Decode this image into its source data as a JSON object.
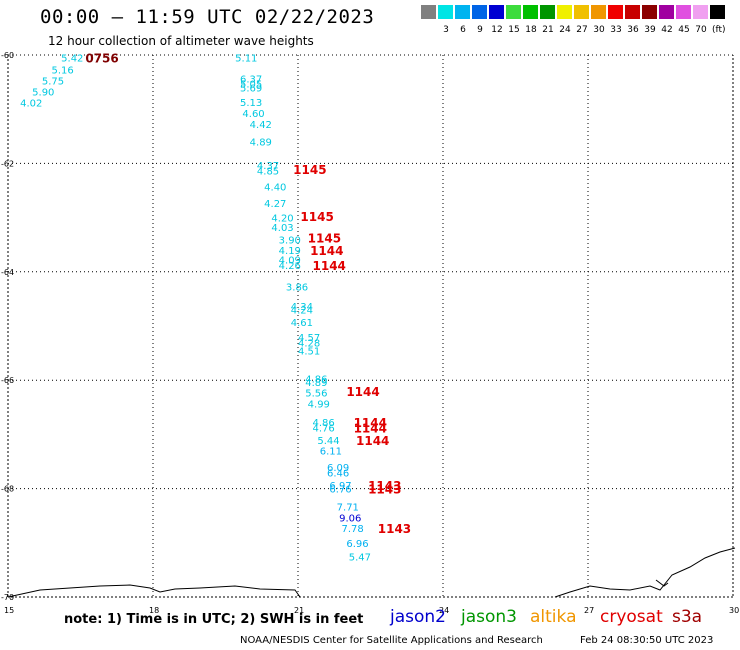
{
  "header": {
    "title": "00:00 – 11:59 UTC 02/22/2023",
    "subtitle": "12 hour collection of altimeter wave heights"
  },
  "legend": {
    "items": [
      {
        "label": "",
        "color": "#808080"
      },
      {
        "label": "3",
        "color": "#00e5e5"
      },
      {
        "label": "6",
        "color": "#00b4f0"
      },
      {
        "label": "9",
        "color": "#0064e6"
      },
      {
        "label": "12",
        "color": "#0000d2"
      },
      {
        "label": "15",
        "color": "#3cdc3c"
      },
      {
        "label": "18",
        "color": "#00c000"
      },
      {
        "label": "21",
        "color": "#009600"
      },
      {
        "label": "24",
        "color": "#f0f000"
      },
      {
        "label": "27",
        "color": "#f0c000"
      },
      {
        "label": "30",
        "color": "#f09600"
      },
      {
        "label": "33",
        "color": "#f00000"
      },
      {
        "label": "36",
        "color": "#c80000"
      },
      {
        "label": "39",
        "color": "#8c0000"
      },
      {
        "label": "42",
        "color": "#a000a0"
      },
      {
        "label": "45",
        "color": "#e050e0"
      },
      {
        "label": "70",
        "color": "#f0a0f0"
      },
      {
        "label": "",
        "color": "#000000"
      }
    ],
    "unit": "(ft)"
  },
  "map": {
    "lat_labels": [
      "-60",
      "-62",
      "-64",
      "-66",
      "-68",
      "-70"
    ],
    "lon_labels": [
      "15",
      "18",
      "21",
      "24",
      "27",
      "30"
    ],
    "grid": true
  },
  "observations": [
    {
      "text": "5.42",
      "lon": 16.1,
      "lat": -60.05,
      "color": "#00c8e0"
    },
    {
      "text": "5.16",
      "lon": 15.9,
      "lat": -60.27,
      "color": "#00c8e0"
    },
    {
      "text": "5.75",
      "lon": 15.7,
      "lat": -60.47,
      "color": "#00c8e0"
    },
    {
      "text": "5.90",
      "lon": 15.5,
      "lat": -60.67,
      "color": "#00c8e0"
    },
    {
      "text": "4.02",
      "lon": 15.25,
      "lat": -60.88,
      "color": "#00c8e0"
    },
    {
      "text": "5.11",
      "lon": 19.7,
      "lat": -60.05,
      "color": "#00c8e0"
    },
    {
      "text": "6.37",
      "lon": 19.8,
      "lat": -60.43,
      "color": "#00c8e0"
    },
    {
      "text": "5.05",
      "lon": 19.8,
      "lat": -60.53,
      "color": "#00c8e0"
    },
    {
      "text": "5.69",
      "lon": 19.8,
      "lat": -60.6,
      "color": "#00c8e0"
    },
    {
      "text": "5.13",
      "lon": 19.8,
      "lat": -60.87,
      "color": "#00c8e0"
    },
    {
      "text": "4.60",
      "lon": 19.85,
      "lat": -61.07,
      "color": "#00c8e0"
    },
    {
      "text": "4.42",
      "lon": 20.0,
      "lat": -61.27,
      "color": "#00c8e0"
    },
    {
      "text": "4.89",
      "lon": 20.0,
      "lat": -61.6,
      "color": "#00c8e0"
    },
    {
      "text": "4.37",
      "lon": 20.15,
      "lat": -62.03,
      "color": "#00c8e0"
    },
    {
      "text": "4.85",
      "lon": 20.15,
      "lat": -62.13,
      "color": "#00c8e0"
    },
    {
      "text": "4.40",
      "lon": 20.3,
      "lat": -62.43,
      "color": "#00c8e0"
    },
    {
      "text": "4.27",
      "lon": 20.3,
      "lat": -62.73,
      "color": "#00c8e0"
    },
    {
      "text": "4.20",
      "lon": 20.45,
      "lat": -63.0,
      "color": "#00c8e0"
    },
    {
      "text": "4.03",
      "lon": 20.45,
      "lat": -63.17,
      "color": "#00c8e0"
    },
    {
      "text": "3.90",
      "lon": 20.6,
      "lat": -63.4,
      "color": "#00c8e0"
    },
    {
      "text": "4.19",
      "lon": 20.6,
      "lat": -63.6,
      "color": "#00c8e0"
    },
    {
      "text": "4.09",
      "lon": 20.6,
      "lat": -63.77,
      "color": "#00c8e0"
    },
    {
      "text": "4.26",
      "lon": 20.6,
      "lat": -63.87,
      "color": "#00c8e0"
    },
    {
      "text": "3.86",
      "lon": 20.75,
      "lat": -64.27,
      "color": "#00c8e0"
    },
    {
      "text": "4.34",
      "lon": 20.85,
      "lat": -64.63,
      "color": "#00c8e0"
    },
    {
      "text": "4.24",
      "lon": 20.85,
      "lat": -64.7,
      "color": "#00c8e0"
    },
    {
      "text": "4.61",
      "lon": 20.85,
      "lat": -64.93,
      "color": "#00c8e0"
    },
    {
      "text": "4.57",
      "lon": 21.0,
      "lat": -65.2,
      "color": "#00c8e0"
    },
    {
      "text": "4.28",
      "lon": 21.0,
      "lat": -65.3,
      "color": "#00c8e0"
    },
    {
      "text": "4.51",
      "lon": 21.0,
      "lat": -65.45,
      "color": "#00c8e0"
    },
    {
      "text": "4.86",
      "lon": 21.15,
      "lat": -65.97,
      "color": "#00c8e0"
    },
    {
      "text": "4.89",
      "lon": 21.15,
      "lat": -66.03,
      "color": "#00c8e0"
    },
    {
      "text": "5.56",
      "lon": 21.15,
      "lat": -66.23,
      "color": "#00c8e0"
    },
    {
      "text": "4.99",
      "lon": 21.2,
      "lat": -66.43,
      "color": "#00c8e0"
    },
    {
      "text": "4.86",
      "lon": 21.3,
      "lat": -66.77,
      "color": "#00c8e0"
    },
    {
      "text": "4.76",
      "lon": 21.3,
      "lat": -66.87,
      "color": "#00c8e0"
    },
    {
      "text": "5.44",
      "lon": 21.4,
      "lat": -67.1,
      "color": "#00c8e0"
    },
    {
      "text": "6.11",
      "lon": 21.45,
      "lat": -67.3,
      "color": "#00b0f0"
    },
    {
      "text": "6.09",
      "lon": 21.6,
      "lat": -67.6,
      "color": "#00b0f0"
    },
    {
      "text": "6.46",
      "lon": 21.6,
      "lat": -67.7,
      "color": "#00b0f0"
    },
    {
      "text": "6.97",
      "lon": 21.65,
      "lat": -67.93,
      "color": "#00b0f0"
    },
    {
      "text": "6.76",
      "lon": 21.65,
      "lat": -68.0,
      "color": "#00b0f0"
    },
    {
      "text": "7.71",
      "lon": 21.8,
      "lat": -68.33,
      "color": "#00b0f0"
    },
    {
      "text": "9.06",
      "lon": 21.85,
      "lat": -68.53,
      "color": "#0000d2"
    },
    {
      "text": "7.78",
      "lon": 21.9,
      "lat": -68.73,
      "color": "#00b0f0"
    },
    {
      "text": "6.96",
      "lon": 22.0,
      "lat": -69.0,
      "color": "#00b0f0"
    },
    {
      "text": "5.47",
      "lon": 22.05,
      "lat": -69.25,
      "color": "#00c8e0"
    }
  ],
  "time_labels": [
    {
      "text": "0756",
      "lon": 16.6,
      "lat": -60.05,
      "color": "#800000"
    },
    {
      "text": "1145",
      "lon": 20.9,
      "lat": -62.1,
      "color": "#e00000"
    },
    {
      "text": "1145",
      "lon": 21.05,
      "lat": -62.97,
      "color": "#e00000"
    },
    {
      "text": "1145",
      "lon": 21.2,
      "lat": -63.37,
      "color": "#e00000"
    },
    {
      "text": "1144",
      "lon": 21.25,
      "lat": -63.6,
      "color": "#e00000"
    },
    {
      "text": "1144",
      "lon": 21.3,
      "lat": -63.87,
      "color": "#e00000"
    },
    {
      "text": "1144",
      "lon": 22.0,
      "lat": -66.2,
      "color": "#e00000"
    },
    {
      "text": "1144",
      "lon": 22.15,
      "lat": -66.77,
      "color": "#e00000"
    },
    {
      "text": "1144",
      "lon": 22.15,
      "lat": -66.87,
      "color": "#e00000"
    },
    {
      "text": "1144",
      "lon": 22.2,
      "lat": -67.1,
      "color": "#e00000"
    },
    {
      "text": "1143",
      "lon": 22.45,
      "lat": -67.93,
      "color": "#e00000"
    },
    {
      "text": "1143",
      "lon": 22.45,
      "lat": -68.0,
      "color": "#e00000"
    },
    {
      "text": "1143",
      "lon": 22.65,
      "lat": -68.73,
      "color": "#e00000"
    }
  ],
  "note": "note: 1) Time is in UTC; 2) SWH is in feet",
  "satellites": [
    {
      "name": "jason2",
      "color": "#0000cc"
    },
    {
      "name": "jason3",
      "color": "#009600"
    },
    {
      "name": "altika",
      "color": "#f09600"
    },
    {
      "name": "cryosat",
      "color": "#e00000"
    },
    {
      "name": "s3a",
      "color": "#a00000"
    }
  ],
  "footer": {
    "source": "NOAA/NESDIS Center for Satellite Applications and Research",
    "timestamp": "Feb 24 08:30:50 UTC 2023"
  }
}
